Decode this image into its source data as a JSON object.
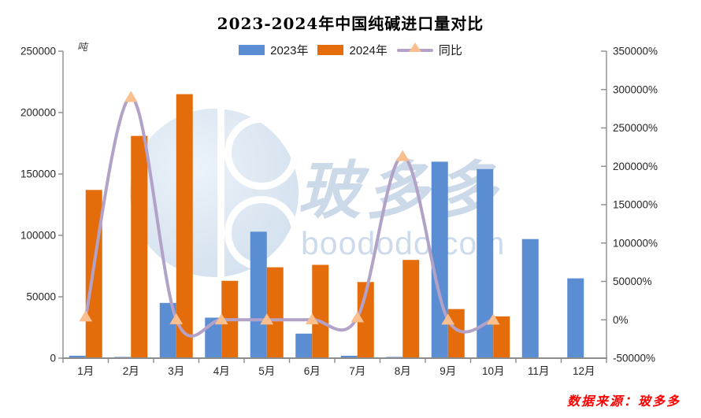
{
  "title": "2023-2024年中国纯碱进口量对比",
  "source_note": "数据来源：玻多多",
  "watermark": {
    "cn": "玻多多",
    "en": "boododo.com"
  },
  "chart_data": {
    "type": "combo-bar-line",
    "title": "2023-2024年中国纯碱进口量对比",
    "grid": false,
    "legend_position": "top",
    "categories": [
      "1月",
      "2月",
      "3月",
      "4月",
      "5月",
      "6月",
      "7月",
      "8月",
      "9月",
      "10月",
      "11月",
      "12月"
    ],
    "series": [
      {
        "name": "2023年",
        "type": "bar",
        "axis": "left",
        "color": "#5B8DD3",
        "values": [
          2000,
          1000,
          45000,
          33000,
          103000,
          20000,
          2000,
          1000,
          160000,
          154000,
          97000,
          65000
        ]
      },
      {
        "name": "2024年",
        "type": "bar",
        "axis": "left",
        "color": "#E46C0A",
        "values": [
          137000,
          181000,
          215000,
          63000,
          74000,
          76000,
          62000,
          80000,
          40000,
          34000,
          null,
          null
        ]
      },
      {
        "name": "同比",
        "type": "line",
        "axis": "right",
        "color": "#B3A2C7",
        "marker": "triangle",
        "marker_color": "#FABF8F",
        "values": [
          4000,
          290000,
          380,
          90,
          -28,
          280,
          3000,
          213000,
          -75,
          -78,
          null,
          null
        ]
      }
    ],
    "y_left": {
      "unit": "吨",
      "min": 0,
      "max": 250000,
      "step": 50000,
      "tick_labels": [
        "0",
        "50000",
        "100000",
        "150000",
        "200000",
        "250000"
      ]
    },
    "y_right": {
      "unit": "%",
      "min": -50000,
      "max": 350000,
      "step": 50000,
      "tick_labels": [
        "-50000%",
        "0%",
        "50000%",
        "100000%",
        "150000%",
        "200000%",
        "250000%",
        "300000%",
        "350000%"
      ]
    }
  }
}
